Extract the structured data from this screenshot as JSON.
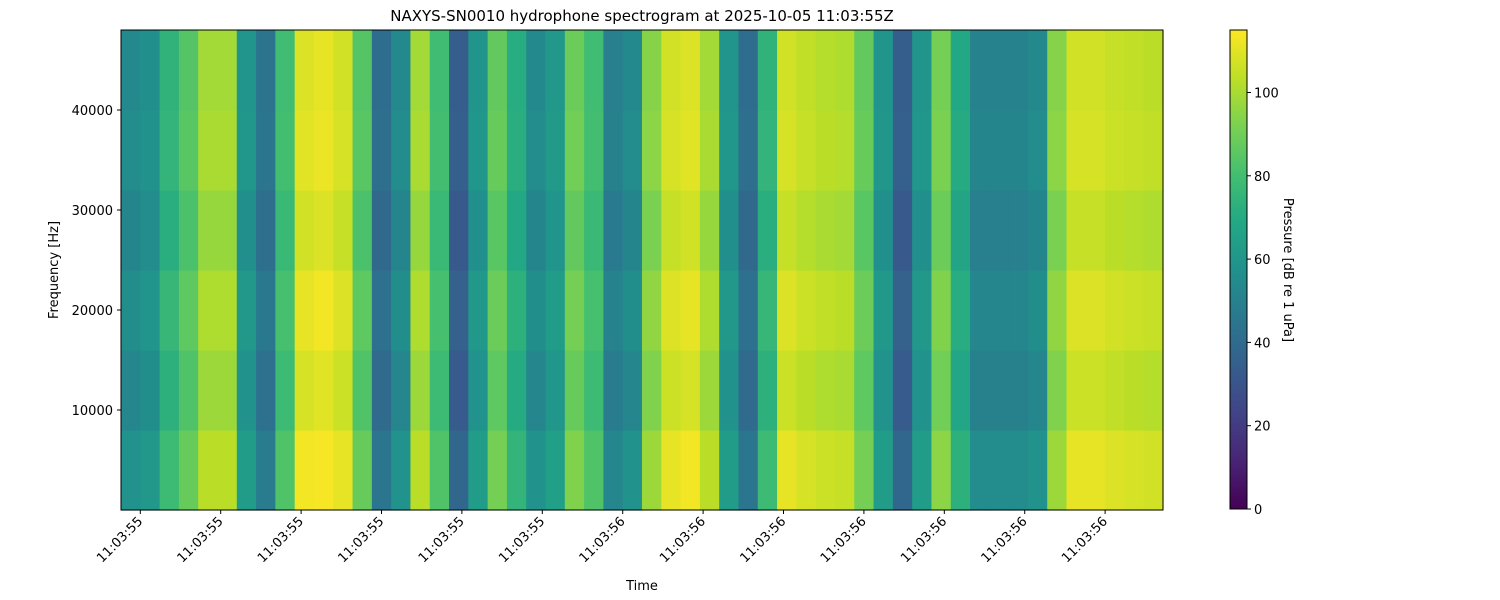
{
  "chart_data": {
    "type": "heatmap",
    "title": "NAXYS-SN0010 hydrophone spectrogram at 2025-10-05 11:03:55Z",
    "x_label": "Time",
    "y_label": "Frequency [Hz]",
    "colorbar_label": "Pressure [dB re 1 uPa]",
    "cmap": "viridis",
    "x": [
      0.235,
      0.265,
      0.295,
      0.325,
      0.355,
      0.385,
      0.415,
      0.445,
      0.475,
      0.505,
      0.535,
      0.565,
      0.595,
      0.625,
      0.655,
      0.685,
      0.715,
      0.745,
      0.775,
      0.805,
      0.835,
      0.865,
      0.895,
      0.925,
      0.955,
      0.985,
      1.015,
      1.045,
      1.075,
      1.105,
      1.135,
      1.165,
      1.195,
      1.225,
      1.255,
      1.285,
      1.315,
      1.345,
      1.375,
      1.405,
      1.435,
      1.465,
      1.495,
      1.525,
      1.555,
      1.585,
      1.615,
      1.645,
      1.675,
      1.705,
      1.735,
      1.765,
      1.795,
      1.825
    ],
    "y": [
      4000,
      12000,
      20000,
      28000,
      36000,
      44000
    ],
    "values": [
      [
        58,
        61,
        78,
        88,
        103,
        103,
        63,
        48,
        83,
        113,
        114,
        111,
        88,
        45,
        58,
        103,
        83,
        38,
        63,
        91,
        75,
        58,
        65,
        93,
        83,
        53,
        58,
        98,
        111,
        113,
        103,
        63,
        45,
        78,
        111,
        108,
        106,
        105,
        91,
        63,
        38,
        63,
        95,
        73,
        55,
        55,
        55,
        58,
        98,
        111,
        111,
        109,
        108,
        107
      ],
      [
        53,
        56,
        73,
        83,
        98,
        98,
        58,
        43,
        78,
        108,
        110,
        106,
        83,
        40,
        53,
        98,
        78,
        33,
        58,
        86,
        70,
        53,
        60,
        88,
        78,
        48,
        53,
        93,
        106,
        108,
        98,
        58,
        40,
        73,
        106,
        103,
        101,
        100,
        86,
        58,
        33,
        58,
        90,
        68,
        50,
        50,
        50,
        53,
        93,
        106,
        106,
        104,
        103,
        102
      ],
      [
        56,
        59,
        76,
        86,
        101,
        101,
        61,
        46,
        81,
        111,
        113,
        109,
        86,
        43,
        56,
        101,
        81,
        36,
        61,
        89,
        73,
        56,
        63,
        91,
        81,
        51,
        56,
        96,
        109,
        111,
        101,
        61,
        43,
        76,
        109,
        106,
        104,
        103,
        89,
        61,
        36,
        61,
        93,
        71,
        53,
        53,
        53,
        56,
        96,
        109,
        109,
        107,
        106,
        105
      ],
      [
        52,
        55,
        72,
        82,
        97,
        97,
        57,
        42,
        77,
        107,
        109,
        105,
        82,
        39,
        52,
        97,
        77,
        32,
        57,
        85,
        69,
        52,
        59,
        87,
        77,
        47,
        52,
        92,
        105,
        107,
        97,
        57,
        39,
        72,
        105,
        102,
        100,
        99,
        85,
        57,
        32,
        57,
        89,
        67,
        49,
        49,
        49,
        52,
        92,
        105,
        105,
        103,
        102,
        101
      ],
      [
        55,
        58,
        75,
        85,
        100,
        100,
        60,
        45,
        80,
        110,
        112,
        108,
        85,
        42,
        55,
        100,
        80,
        35,
        60,
        88,
        72,
        55,
        62,
        90,
        80,
        50,
        55,
        95,
        108,
        110,
        100,
        60,
        42,
        75,
        108,
        105,
        103,
        102,
        88,
        60,
        35,
        60,
        92,
        70,
        52,
        52,
        52,
        55,
        95,
        108,
        108,
        106,
        105,
        104
      ],
      [
        54,
        57,
        74,
        84,
        99,
        99,
        59,
        44,
        79,
        109,
        111,
        107,
        84,
        41,
        54,
        99,
        79,
        34,
        59,
        87,
        71,
        54,
        61,
        89,
        79,
        49,
        54,
        94,
        107,
        109,
        99,
        59,
        41,
        74,
        107,
        104,
        102,
        101,
        87,
        59,
        34,
        59,
        91,
        69,
        51,
        51,
        51,
        54,
        94,
        107,
        107,
        105,
        104,
        103
      ]
    ],
    "xlim": [
      0.22,
      1.84
    ],
    "ylim": [
      0,
      48000
    ],
    "clim": [
      0,
      115
    ],
    "xticks": [
      {
        "value": 0.25,
        "label": "11:03:55"
      },
      {
        "value": 0.375,
        "label": "11:03:55"
      },
      {
        "value": 0.5,
        "label": "11:03:55"
      },
      {
        "value": 0.625,
        "label": "11:03:55"
      },
      {
        "value": 0.75,
        "label": "11:03:55"
      },
      {
        "value": 0.875,
        "label": "11:03:55"
      },
      {
        "value": 1.0,
        "label": "11:03:56"
      },
      {
        "value": 1.125,
        "label": "11:03:56"
      },
      {
        "value": 1.25,
        "label": "11:03:56"
      },
      {
        "value": 1.375,
        "label": "11:03:56"
      },
      {
        "value": 1.5,
        "label": "11:03:56"
      },
      {
        "value": 1.625,
        "label": "11:03:56"
      },
      {
        "value": 1.75,
        "label": "11:03:56"
      }
    ],
    "yticks": [
      10000,
      20000,
      30000,
      40000
    ],
    "cticks": [
      0,
      20,
      40,
      60,
      80,
      100
    ]
  }
}
